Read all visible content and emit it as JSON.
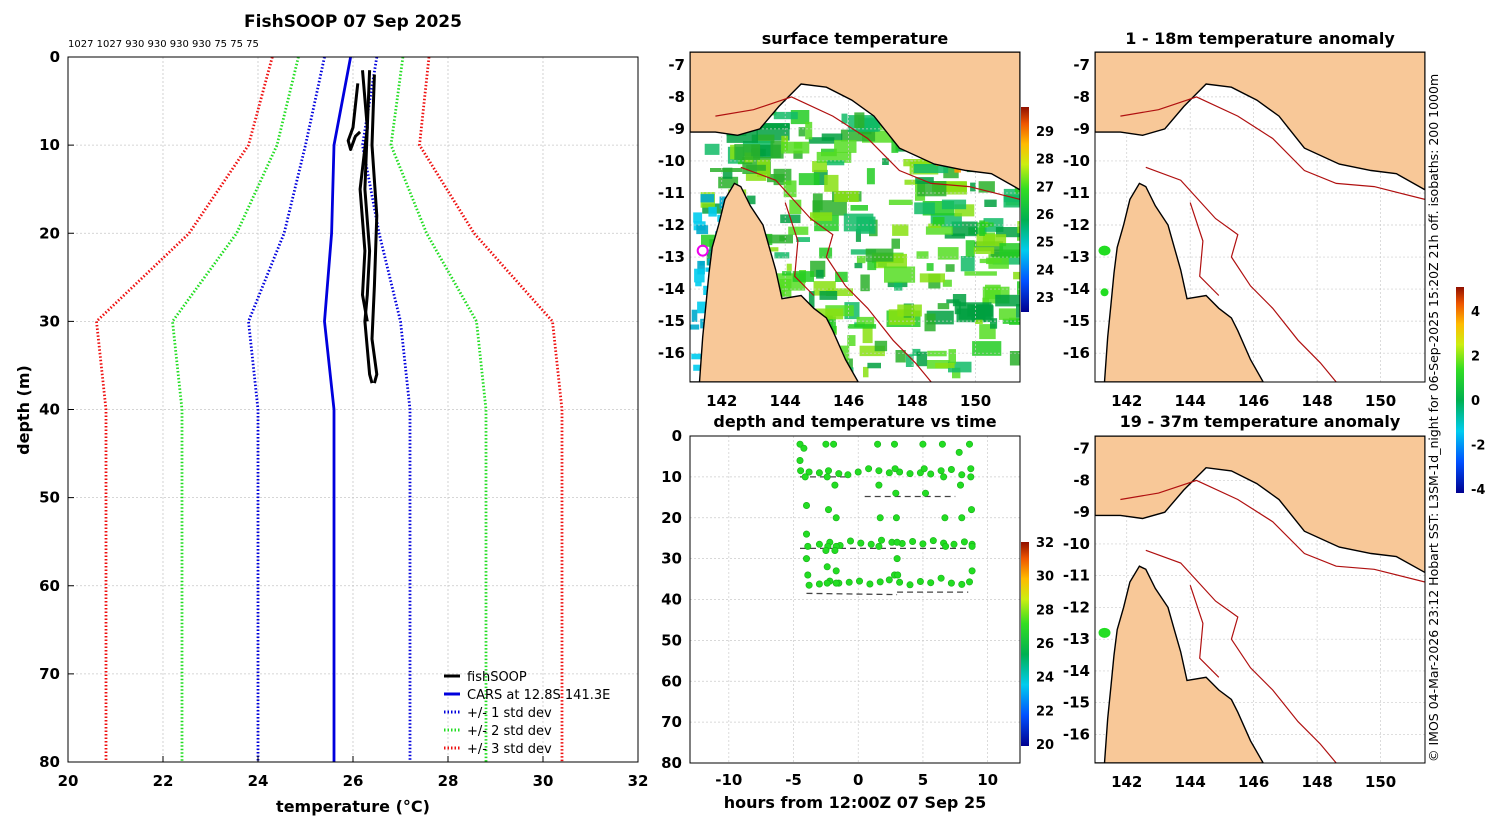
{
  "figure_title": "FishSOOP 07 Sep 2025",
  "side_note": "© IMOS 04-Mar-2026 23:12 Hobart SST: L3SM-1d_night for 06-Sep-2025 15:20Z 21h off. isobaths: 200  1000m",
  "colors": {
    "fishsoop": "#000000",
    "cars": "#0000dd",
    "std1": "#0000dd",
    "std2": "#22dd22",
    "std3": "#ee1111",
    "land": "#f8c898",
    "isobath": "#b01010",
    "coast": "#000000",
    "samples": "#22dd22"
  },
  "chart_data": [
    {
      "id": "profile",
      "type": "line",
      "title": "FishSOOP 07 Sep 2025",
      "xlabel": "temperature (°C)",
      "ylabel": "depth (m)",
      "xlim": [
        20,
        32
      ],
      "ylim": [
        0,
        80
      ],
      "y_inverted": true,
      "xticks": [
        "20",
        "22",
        "24",
        "26",
        "28",
        "30",
        "32"
      ],
      "yticks": [
        "0",
        "10",
        "20",
        "30",
        "40",
        "50",
        "60",
        "70",
        "80"
      ],
      "top_labels": [
        "1027",
        "1027",
        "930",
        "930",
        "930",
        "930",
        "75",
        "75",
        "75"
      ],
      "grid": true,
      "legend_position": "bottom-right",
      "legend": [
        "fishSOOP",
        "CARS at 12.8S 141.3E",
        "+/- 1 std dev",
        "+/- 2 std dev",
        "+/- 3 std dev"
      ],
      "depth": [
        0,
        10,
        20,
        30,
        40,
        50,
        60,
        70,
        80
      ],
      "cars_mean": [
        25.95,
        25.6,
        25.55,
        25.4,
        25.6,
        25.6,
        25.6,
        25.6,
        25.6
      ],
      "cars_std": [
        0.55,
        0.6,
        1.0,
        1.6,
        1.6,
        1.6,
        1.6,
        1.6,
        1.6
      ],
      "fishsoop_casts": [
        [
          [
            26.2,
            1.5
          ],
          [
            26.3,
            8
          ],
          [
            26.15,
            15
          ],
          [
            26.25,
            22
          ],
          [
            26.2,
            27
          ],
          [
            26.3,
            30
          ]
        ],
        [
          [
            26.35,
            1.5
          ],
          [
            26.3,
            8
          ],
          [
            26.25,
            15
          ],
          [
            26.35,
            22
          ],
          [
            26.3,
            27
          ],
          [
            26.25,
            30
          ],
          [
            26.35,
            36
          ],
          [
            26.4,
            37
          ]
        ],
        [
          [
            26.45,
            2
          ],
          [
            26.4,
            10
          ],
          [
            26.5,
            18
          ],
          [
            26.45,
            26
          ],
          [
            26.4,
            32
          ],
          [
            26.5,
            36
          ],
          [
            26.45,
            37
          ]
        ],
        [
          [
            26.1,
            3
          ],
          [
            26.0,
            8
          ],
          [
            25.9,
            9.5
          ],
          [
            25.95,
            10.5
          ],
          [
            26.05,
            9
          ],
          [
            26.15,
            8.5
          ]
        ]
      ]
    },
    {
      "id": "depth-time",
      "type": "scatter",
      "title": "depth and temperature vs time",
      "xlabel": "hours from 12:00Z 07 Sep 25",
      "xlim": [
        -13,
        12.5
      ],
      "ylim": [
        0,
        80
      ],
      "y_inverted": true,
      "xticks": [
        "-10",
        "-5",
        "0",
        "5",
        "10"
      ],
      "yticks": [
        "0",
        "10",
        "20",
        "30",
        "40",
        "50",
        "60",
        "70",
        "80"
      ],
      "colorbar_ticks": [
        "20",
        "22",
        "24",
        "26",
        "28",
        "30",
        "32"
      ],
      "samples": [
        [
          -4.5,
          2
        ],
        [
          -4.5,
          6
        ],
        [
          -4.45,
          8.5
        ],
        [
          -3.8,
          8.8
        ],
        [
          -3,
          9
        ],
        [
          -2.3,
          8.5
        ],
        [
          -1.5,
          9.2
        ],
        [
          -0.8,
          9.5
        ],
        [
          0,
          8.8
        ],
        [
          0.8,
          8
        ],
        [
          1.6,
          8.5
        ],
        [
          2.4,
          9
        ],
        [
          3.2,
          8.8
        ],
        [
          4,
          9.2
        ],
        [
          4.8,
          9
        ],
        [
          5.6,
          9.3
        ],
        [
          6.4,
          8.5
        ],
        [
          7.2,
          8.2
        ],
        [
          8,
          9.5
        ],
        [
          8.7,
          8
        ],
        [
          -4.2,
          3
        ],
        [
          -4.1,
          10
        ],
        [
          -4.0,
          17
        ],
        [
          -4.0,
          24
        ],
        [
          -3.9,
          27
        ],
        [
          -3,
          26.5
        ],
        [
          -2.2,
          26
        ],
        [
          -1.4,
          26.8
        ],
        [
          -0.6,
          25.7
        ],
        [
          0.2,
          26.2
        ],
        [
          1,
          26.5
        ],
        [
          1.8,
          25.5
        ],
        [
          2.6,
          26
        ],
        [
          3.4,
          26.3
        ],
        [
          4.2,
          25.8
        ],
        [
          5,
          26.4
        ],
        [
          5.8,
          25.6
        ],
        [
          6.6,
          26.2
        ],
        [
          7.4,
          26.5
        ],
        [
          8.2,
          25.9
        ],
        [
          8.8,
          26.5
        ],
        [
          -2.5,
          2
        ],
        [
          -2.4,
          10
        ],
        [
          -2.3,
          18
        ],
        [
          -2.35,
          27
        ],
        [
          -1.9,
          2
        ],
        [
          -1.8,
          12
        ],
        [
          -1.7,
          20
        ],
        [
          -1.7,
          27
        ],
        [
          -4.0,
          30
        ],
        [
          -3.9,
          34
        ],
        [
          -3.8,
          36.5
        ],
        [
          -3,
          36.2
        ],
        [
          -2.2,
          35.5
        ],
        [
          -1.5,
          36
        ],
        [
          -0.7,
          35.8
        ],
        [
          0.1,
          35.5
        ],
        [
          0.9,
          36.2
        ],
        [
          1.7,
          35.7
        ],
        [
          2.4,
          35.2
        ],
        [
          2.8,
          34
        ],
        [
          3.2,
          35.8
        ],
        [
          4,
          36.4
        ],
        [
          4.8,
          35.6
        ],
        [
          5.6,
          35.9
        ],
        [
          6.4,
          34.8
        ],
        [
          7.2,
          36
        ],
        [
          8,
          36.3
        ],
        [
          8.6,
          35.7
        ],
        [
          -2.5,
          28
        ],
        [
          -2.4,
          32
        ],
        [
          -2.4,
          36
        ],
        [
          -1.8,
          28
        ],
        [
          -1.7,
          33
        ],
        [
          -1.7,
          36
        ],
        [
          1.5,
          2
        ],
        [
          1.6,
          12
        ],
        [
          1.7,
          20
        ],
        [
          1.6,
          27
        ],
        [
          2.8,
          2
        ],
        [
          2.85,
          8
        ],
        [
          2.9,
          14
        ],
        [
          2.95,
          20
        ],
        [
          3.0,
          26
        ],
        [
          3.0,
          30
        ],
        [
          3.05,
          34
        ],
        [
          5.0,
          2
        ],
        [
          5.1,
          8
        ],
        [
          5.2,
          14
        ],
        [
          6.5,
          2
        ],
        [
          6.6,
          10
        ],
        [
          6.7,
          20
        ],
        [
          6.75,
          27
        ],
        [
          7.8,
          4
        ],
        [
          7.9,
          12
        ],
        [
          8.0,
          20
        ],
        [
          8.6,
          2
        ],
        [
          8.7,
          10
        ],
        [
          8.75,
          18
        ],
        [
          8.8,
          27
        ],
        [
          8.8,
          33
        ]
      ],
      "dashed_bottoms": [
        [
          [
            -4.5,
            10
          ],
          [
            -0.8,
            10
          ]
        ],
        [
          [
            0.5,
            14.8
          ],
          [
            7.5,
            14.8
          ]
        ],
        [
          [
            -4.5,
            27.5
          ],
          [
            8.5,
            27.5
          ]
        ],
        [
          [
            -4,
            38.5
          ],
          [
            3,
            38.8
          ]
        ],
        [
          [
            3,
            38.2
          ],
          [
            8.5,
            38.2
          ]
        ]
      ]
    }
  ],
  "maps": [
    {
      "id": "sst",
      "title": "surface temperature",
      "lon_ticks": [
        "142",
        "144",
        "146",
        "148",
        "150"
      ],
      "lat_ticks": [
        "-7",
        "-8",
        "-9",
        "-10",
        "-11",
        "-12",
        "-13",
        "-14",
        "-15",
        "-16"
      ],
      "colorbar_ticks": [
        "23",
        "24",
        "25",
        "26",
        "27",
        "28",
        "29"
      ]
    },
    {
      "id": "anom-shallow",
      "title": "1 - 18m temperature anomaly",
      "lon_ticks": [
        "142",
        "144",
        "146",
        "148",
        "150"
      ],
      "lat_ticks": [
        "-7",
        "-8",
        "-9",
        "-10",
        "-11",
        "-12",
        "-13",
        "-14",
        "-15",
        "-16"
      ],
      "colorbar_ticks": [
        "4",
        "2",
        "0",
        "-2",
        "-4"
      ]
    },
    {
      "id": "anom-deep",
      "title": "19 - 37m temperature anomaly",
      "lon_ticks": [
        "142",
        "144",
        "146",
        "148",
        "150"
      ],
      "lat_ticks": [
        "-7",
        "-8",
        "-9",
        "-10",
        "-11",
        "-12",
        "-13",
        "-14",
        "-15",
        "-16"
      ]
    }
  ]
}
